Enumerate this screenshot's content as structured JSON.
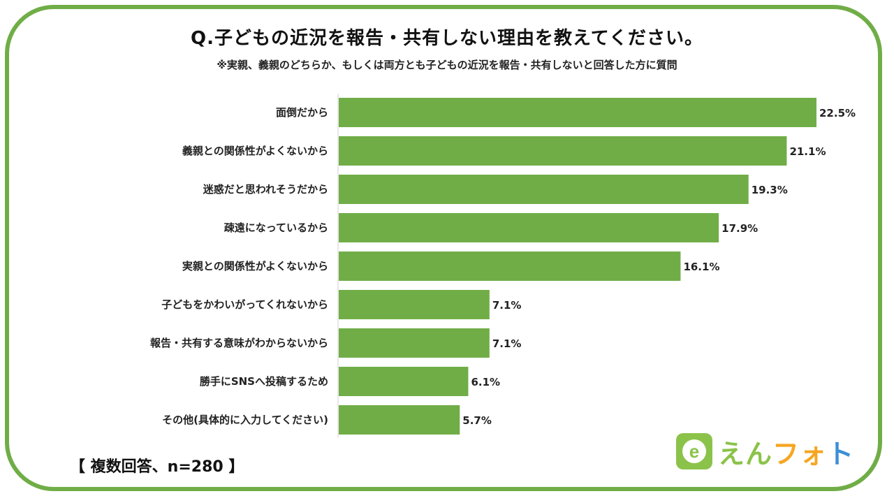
{
  "title": "Q.子どもの近況を報告・共有しない理由を教えてください。",
  "subtitle": "※実親、義親のどちらか、もしくは両方とも子どもの近況を報告・共有しないと回答した方に質問",
  "footnote": "【 複数回答、n=280 】",
  "brand": {
    "name_chars": [
      "え",
      "ん",
      "フ",
      "ォ",
      "ト"
    ],
    "mark_letter": "e"
  },
  "colors": {
    "bar": "#70ad47",
    "frame": "#70ad47",
    "logo_green": "#8bc34a",
    "logo_orange": "#f5a623",
    "logo_blue": "#3b8fd6"
  },
  "chart_data": {
    "type": "bar",
    "orientation": "horizontal",
    "categories": [
      "面倒だから",
      "義親との関係性がよくないから",
      "迷惑だと思われそうだから",
      "疎遠になっているから",
      "実親との関係性がよくないから",
      "子どもをかわいがってくれないから",
      "報告・共有する意味がわからないから",
      "勝手にSNSへ投稿するため",
      "その他(具体的に入力してください)"
    ],
    "values": [
      22.5,
      21.1,
      19.3,
      17.9,
      16.1,
      7.1,
      7.1,
      6.1,
      5.7
    ],
    "value_labels": [
      "22.5%",
      "21.1%",
      "19.3%",
      "17.9%",
      "16.1%",
      "7.1%",
      "7.1%",
      "6.1%",
      "5.7%"
    ],
    "xlim": [
      0,
      22.5
    ],
    "grid": false,
    "legend": "none"
  }
}
